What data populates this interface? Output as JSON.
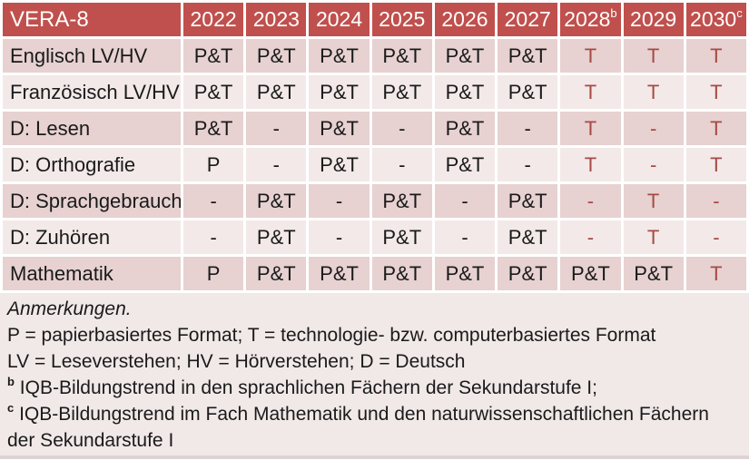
{
  "colors": {
    "header_bg": "#c0504d",
    "header_text": "#ffffff",
    "band_dark": "#e7d1d1",
    "band_light": "#f3e9e9",
    "notes_bg": "#f1e8e8",
    "red_value": "#a64a44"
  },
  "table": {
    "title_cell": "VERA-8",
    "columns": [
      {
        "label": "2022",
        "sup": ""
      },
      {
        "label": "2023",
        "sup": ""
      },
      {
        "label": "2024",
        "sup": ""
      },
      {
        "label": "2025",
        "sup": ""
      },
      {
        "label": "2026",
        "sup": ""
      },
      {
        "label": "2027",
        "sup": ""
      },
      {
        "label": "2028",
        "sup": "b"
      },
      {
        "label": "2029",
        "sup": ""
      },
      {
        "label": "2030",
        "sup": "c"
      }
    ],
    "rows": [
      {
        "label": "Englisch LV/HV",
        "cells": [
          {
            "t": "P&T",
            "red": false
          },
          {
            "t": "P&T",
            "red": false
          },
          {
            "t": "P&T",
            "red": false
          },
          {
            "t": "P&T",
            "red": false
          },
          {
            "t": "P&T",
            "red": false
          },
          {
            "t": "P&T",
            "red": false
          },
          {
            "t": "T",
            "red": true
          },
          {
            "t": "T",
            "red": true
          },
          {
            "t": "T",
            "red": true
          }
        ]
      },
      {
        "label": "Französisch LV/HV",
        "cells": [
          {
            "t": "P&T",
            "red": false
          },
          {
            "t": "P&T",
            "red": false
          },
          {
            "t": "P&T",
            "red": false
          },
          {
            "t": "P&T",
            "red": false
          },
          {
            "t": "P&T",
            "red": false
          },
          {
            "t": "P&T",
            "red": false
          },
          {
            "t": "T",
            "red": true
          },
          {
            "t": "T",
            "red": true
          },
          {
            "t": "T",
            "red": true
          }
        ]
      },
      {
        "label": "D: Lesen",
        "cells": [
          {
            "t": "P&T",
            "red": false
          },
          {
            "t": "-",
            "red": false
          },
          {
            "t": "P&T",
            "red": false
          },
          {
            "t": "-",
            "red": false
          },
          {
            "t": "P&T",
            "red": false
          },
          {
            "t": "-",
            "red": false
          },
          {
            "t": "T",
            "red": true
          },
          {
            "t": "-",
            "red": true
          },
          {
            "t": "T",
            "red": true
          }
        ]
      },
      {
        "label": "D: Orthografie",
        "cells": [
          {
            "t": "P",
            "red": false
          },
          {
            "t": "-",
            "red": false
          },
          {
            "t": "P&T",
            "red": false
          },
          {
            "t": "-",
            "red": false
          },
          {
            "t": "P&T",
            "red": false
          },
          {
            "t": "-",
            "red": false
          },
          {
            "t": "T",
            "red": true
          },
          {
            "t": "-",
            "red": true
          },
          {
            "t": "T",
            "red": true
          }
        ]
      },
      {
        "label": "D: Sprachgebrauch",
        "cells": [
          {
            "t": "-",
            "red": false
          },
          {
            "t": "P&T",
            "red": false
          },
          {
            "t": "-",
            "red": false
          },
          {
            "t": "P&T",
            "red": false
          },
          {
            "t": "-",
            "red": false
          },
          {
            "t": "P&T",
            "red": false
          },
          {
            "t": "-",
            "red": true
          },
          {
            "t": "T",
            "red": true
          },
          {
            "t": "-",
            "red": true
          }
        ]
      },
      {
        "label": "D: Zuhören",
        "cells": [
          {
            "t": "-",
            "red": false
          },
          {
            "t": "P&T",
            "red": false
          },
          {
            "t": "-",
            "red": false
          },
          {
            "t": "P&T",
            "red": false
          },
          {
            "t": "-",
            "red": false
          },
          {
            "t": "P&T",
            "red": false
          },
          {
            "t": "-",
            "red": true
          },
          {
            "t": "T",
            "red": true
          },
          {
            "t": "-",
            "red": true
          }
        ]
      },
      {
        "label": "Mathematik",
        "cells": [
          {
            "t": "P",
            "red": false
          },
          {
            "t": "P&T",
            "red": false
          },
          {
            "t": "P&T",
            "red": false
          },
          {
            "t": "P&T",
            "red": false
          },
          {
            "t": "P&T",
            "red": false
          },
          {
            "t": "P&T",
            "red": false
          },
          {
            "t": "P&T",
            "red": false
          },
          {
            "t": "P&T",
            "red": false
          },
          {
            "t": "T",
            "red": true
          }
        ]
      }
    ]
  },
  "notes": {
    "heading": "Anmerkungen.",
    "lines": [
      {
        "sup": "",
        "text": "P = papierbasiertes Format; T = technologie- bzw. computerbasiertes Format"
      },
      {
        "sup": "",
        "text": "LV = Leseverstehen; HV = Hörverstehen; D = Deutsch"
      },
      {
        "sup": "b",
        "text": "IQB-Bildungstrend in den sprachlichen Fächern der Sekundarstufe I;"
      },
      {
        "sup": "c",
        "text": "IQB-Bildungstrend im Fach Mathematik und den naturwissenschaftlichen Fächern der Sekundarstufe I"
      }
    ]
  }
}
